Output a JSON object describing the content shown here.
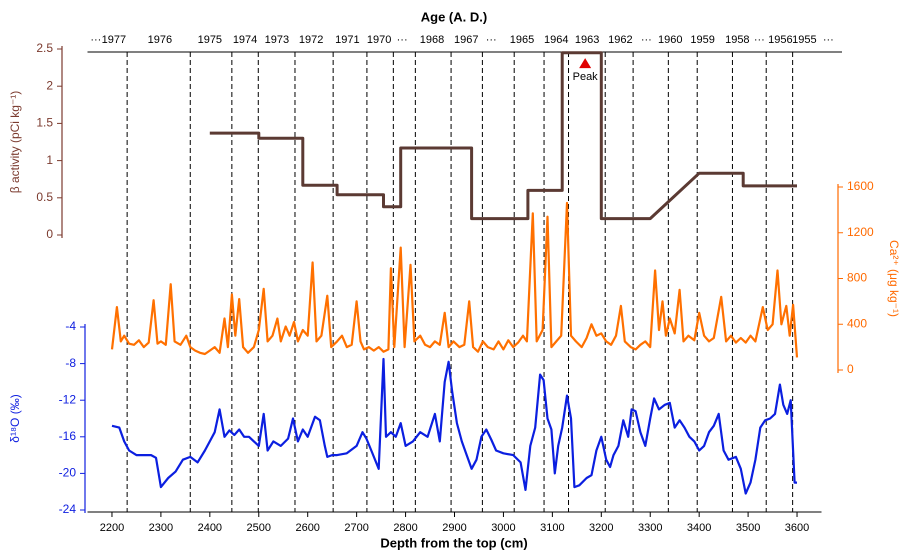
{
  "chart_data": {
    "type": "line",
    "x2label": "Age (A. D.)",
    "xlabel": "Depth from the top (cm)",
    "xlim": [
      2150,
      3650
    ],
    "xticks": [
      2200,
      2300,
      2400,
      2500,
      2600,
      2700,
      2800,
      2900,
      3000,
      3100,
      3200,
      3300,
      3400,
      3500,
      3600
    ],
    "x2ticks": [
      {
        "value": 2167,
        "label": "···"
      },
      {
        "value": 2204,
        "label": "1977"
      },
      {
        "value": 2298,
        "label": "1976"
      },
      {
        "value": 2400,
        "label": "1975"
      },
      {
        "value": 2472,
        "label": "1974"
      },
      {
        "value": 2537,
        "label": "1973"
      },
      {
        "value": 2607,
        "label": "1972"
      },
      {
        "value": 2681,
        "label": "1971"
      },
      {
        "value": 2746,
        "label": "1970"
      },
      {
        "value": 2793,
        "label": "···"
      },
      {
        "value": 2854,
        "label": "1968"
      },
      {
        "value": 2924,
        "label": "1967"
      },
      {
        "value": 2975,
        "label": "···"
      },
      {
        "value": 3038,
        "label": "1965"
      },
      {
        "value": 3108,
        "label": "1964"
      },
      {
        "value": 3171,
        "label": "1963"
      },
      {
        "value": 3239,
        "label": "1962"
      },
      {
        "value": 3292,
        "label": "···"
      },
      {
        "value": 3341,
        "label": "1960"
      },
      {
        "value": 3407,
        "label": "1959"
      },
      {
        "value": 3478,
        "label": "1958"
      },
      {
        "value": 3523,
        "label": "···"
      },
      {
        "value": 3566,
        "label": "1956"
      },
      {
        "value": 3615,
        "label": "1955"
      },
      {
        "value": 3664,
        "label": "···"
      }
    ],
    "age_boundaries": [
      2231,
      2360,
      2445,
      2499,
      2574,
      2652,
      2721,
      2775,
      2820,
      2893,
      2957,
      3022,
      3083,
      3133,
      3208,
      3265,
      3337,
      3396,
      3468,
      3537,
      3591
    ],
    "axes": {
      "beta": {
        "label": "β activity (pCi kg⁻¹)",
        "color": "#7b3a2e",
        "ylim": [
          0,
          2.5
        ],
        "yticks": [
          0,
          0.5,
          1,
          1.5,
          2,
          2.5
        ]
      },
      "ca": {
        "label": "Ca²⁺ (μg kg⁻¹)",
        "color": "#ff6a00",
        "ylim": [
          0,
          1600
        ],
        "yticks": [
          0,
          400,
          800,
          1200,
          1600
        ]
      },
      "d18o": {
        "label": "δ¹⁸O (‰)",
        "color": "#1020e0",
        "ylim": [
          -24,
          -4
        ],
        "yticks": [
          -4,
          -8,
          -12,
          -16,
          -20,
          -24
        ]
      }
    },
    "series": [
      {
        "axis": "beta",
        "color": "#5b3a33",
        "x": [
          2400,
          2500,
          2500,
          2590,
          2590,
          2660,
          2660,
          2755,
          2755,
          2790,
          2790,
          2935,
          2935,
          3050,
          3050,
          3120,
          3120,
          3200,
          3200,
          3300,
          3400,
          3490,
          3490,
          3600
        ],
        "values": [
          1.37,
          1.37,
          1.3,
          1.3,
          0.67,
          0.67,
          0.54,
          0.54,
          0.38,
          0.38,
          1.17,
          1.17,
          0.22,
          0.22,
          0.6,
          0.6,
          2.45,
          2.45,
          0.22,
          0.22,
          0.83,
          0.83,
          0.66,
          0.66
        ]
      },
      {
        "axis": "ca",
        "color": "#ff7000",
        "x": [
          2200,
          2210,
          2218,
          2225,
          2235,
          2245,
          2255,
          2265,
          2275,
          2285,
          2293,
          2300,
          2310,
          2320,
          2328,
          2340,
          2352,
          2360,
          2370,
          2380,
          2390,
          2400,
          2410,
          2420,
          2430,
          2437,
          2445,
          2452,
          2460,
          2468,
          2478,
          2490,
          2500,
          2510,
          2518,
          2528,
          2538,
          2545,
          2555,
          2563,
          2572,
          2580,
          2590,
          2600,
          2610,
          2618,
          2628,
          2640,
          2648,
          2660,
          2670,
          2680,
          2690,
          2700,
          2708,
          2715,
          2725,
          2735,
          2745,
          2755,
          2765,
          2770,
          2777,
          2790,
          2798,
          2810,
          2818,
          2830,
          2840,
          2850,
          2860,
          2870,
          2880,
          2888,
          2898,
          2910,
          2920,
          2930,
          2938,
          2948,
          2958,
          2968,
          2980,
          2990,
          3000,
          3010,
          3020,
          3030,
          3040,
          3048,
          3060,
          3068,
          3080,
          3090,
          3098,
          3108,
          3118,
          3130,
          3138,
          3148,
          3160,
          3170,
          3180,
          3190,
          3200,
          3210,
          3220,
          3230,
          3240,
          3248,
          3260,
          3270,
          3280,
          3290,
          3300,
          3310,
          3318,
          3325,
          3332,
          3340,
          3350,
          3360,
          3368,
          3378,
          3390,
          3400,
          3410,
          3420,
          3430,
          3445,
          3455,
          3465,
          3475,
          3485,
          3495,
          3505,
          3515,
          3530,
          3540,
          3550,
          3560,
          3568,
          3578,
          3585,
          3592,
          3600
        ],
        "values": [
          180,
          550,
          250,
          300,
          230,
          220,
          260,
          200,
          240,
          610,
          230,
          250,
          220,
          750,
          250,
          220,
          300,
          200,
          170,
          150,
          140,
          170,
          200,
          150,
          450,
          200,
          660,
          300,
          620,
          200,
          150,
          200,
          350,
          710,
          250,
          300,
          450,
          250,
          380,
          300,
          420,
          250,
          350,
          300,
          940,
          250,
          300,
          650,
          200,
          250,
          300,
          200,
          220,
          600,
          250,
          180,
          200,
          170,
          200,
          160,
          180,
          890,
          200,
          1070,
          200,
          920,
          250,
          300,
          220,
          200,
          250,
          220,
          500,
          200,
          250,
          200,
          220,
          600,
          200,
          160,
          250,
          200,
          180,
          250,
          180,
          260,
          200,
          240,
          300,
          250,
          1370,
          250,
          350,
          1340,
          200,
          250,
          300,
          1460,
          300,
          250,
          200,
          280,
          400,
          300,
          320,
          250,
          220,
          300,
          560,
          250,
          200,
          180,
          220,
          250,
          200,
          870,
          350,
          600,
          300,
          450,
          320,
          700,
          250,
          300,
          260,
          500,
          300,
          250,
          280,
          640,
          250,
          300,
          240,
          280,
          240,
          300,
          250,
          550,
          350,
          400,
          870,
          400,
          560,
          300,
          570,
          110
        ]
      },
      {
        "axis": "d18o",
        "color": "#0b1fe0",
        "x": [
          2200,
          2215,
          2225,
          2235,
          2250,
          2265,
          2280,
          2290,
          2300,
          2315,
          2330,
          2345,
          2360,
          2375,
          2390,
          2400,
          2410,
          2420,
          2430,
          2440,
          2450,
          2460,
          2470,
          2480,
          2490,
          2500,
          2510,
          2518,
          2530,
          2545,
          2560,
          2570,
          2580,
          2590,
          2600,
          2615,
          2625,
          2635,
          2640,
          2650,
          2660,
          2680,
          2700,
          2712,
          2720,
          2730,
          2745,
          2755,
          2760,
          2770,
          2780,
          2790,
          2800,
          2815,
          2830,
          2845,
          2860,
          2870,
          2880,
          2888,
          2895,
          2905,
          2915,
          2925,
          2935,
          2945,
          2955,
          2965,
          2975,
          2985,
          3000,
          3020,
          3035,
          3045,
          3055,
          3065,
          3075,
          3082,
          3090,
          3098,
          3105,
          3112,
          3120,
          3130,
          3138,
          3145,
          3155,
          3170,
          3180,
          3190,
          3200,
          3210,
          3218,
          3225,
          3235,
          3245,
          3255,
          3262,
          3270,
          3280,
          3290,
          3300,
          3308,
          3318,
          3330,
          3340,
          3350,
          3360,
          3370,
          3380,
          3390,
          3400,
          3410,
          3420,
          3430,
          3440,
          3450,
          3460,
          3475,
          3485,
          3495,
          3505,
          3515,
          3525,
          3535,
          3545,
          3555,
          3565,
          3572,
          3580,
          3587,
          3595,
          3600
        ],
        "values": [
          -14.8,
          -15,
          -16.5,
          -17.5,
          -18,
          -18,
          -18,
          -18.3,
          -21.5,
          -20.5,
          -19.8,
          -18.5,
          -18.2,
          -18.8,
          -17.5,
          -16.5,
          -15.5,
          -13,
          -16,
          -15.3,
          -15.8,
          -15.2,
          -16,
          -16,
          -16.5,
          -17,
          -13.5,
          -17.5,
          -16.5,
          -17,
          -16.2,
          -14,
          -16.5,
          -15.2,
          -16,
          -13.8,
          -14.2,
          -17,
          -18.2,
          -18,
          -18,
          -17.8,
          -17,
          -15.5,
          -16.2,
          -17.5,
          -19.5,
          -7.5,
          -16,
          -15.5,
          -16,
          -14.5,
          -17,
          -16.5,
          -15.5,
          -16,
          -13.5,
          -16.5,
          -10,
          -7.8,
          -11,
          -14.5,
          -16.5,
          -18,
          -19.5,
          -18.5,
          -16,
          -15.2,
          -16.3,
          -17.5,
          -17.8,
          -18,
          -18.8,
          -21.8,
          -17,
          -15,
          -9.2,
          -9.8,
          -14,
          -15.2,
          -20,
          -17,
          -15,
          -11.5,
          -14,
          -21.5,
          -21.3,
          -20.5,
          -20.2,
          -17.5,
          -16,
          -18.5,
          -19.3,
          -18,
          -17,
          -14.2,
          -16,
          -13,
          -13.2,
          -15.5,
          -17,
          -14,
          -11.8,
          -13,
          -12.5,
          -12.3,
          -15,
          -14.2,
          -15,
          -16,
          -16.5,
          -17.5,
          -17,
          -15.5,
          -14.8,
          -13.5,
          -17.5,
          -18.5,
          -18.2,
          -19.5,
          -22.2,
          -21,
          -18.5,
          -15,
          -14.2,
          -14,
          -13.5,
          -10.3,
          -12.5,
          -13.5,
          -12,
          -21,
          -21
        ]
      }
    ],
    "annotation": {
      "text": "Peak",
      "x": 3167,
      "y": 2.31,
      "axis": "beta",
      "color": "#e00000"
    }
  }
}
